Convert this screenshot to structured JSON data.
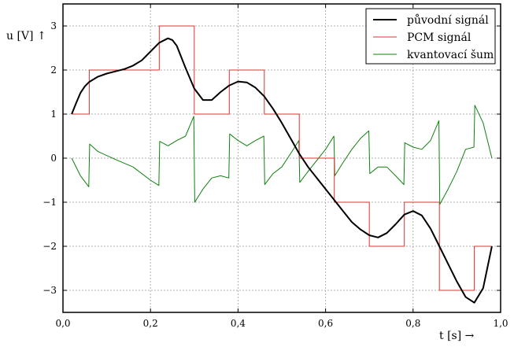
{
  "chart_data": {
    "type": "line",
    "xlabel": "t [s] →",
    "ylabel": "u [V] ↑",
    "xlim": [
      0.0,
      1.0
    ],
    "ylim": [
      -3.5,
      3.5
    ],
    "xticks": [
      {
        "value": 0.0,
        "label": "0,0"
      },
      {
        "value": 0.2,
        "label": "0,2"
      },
      {
        "value": 0.4,
        "label": "0,4"
      },
      {
        "value": 0.6,
        "label": "0,6"
      },
      {
        "value": 0.8,
        "label": "0,8"
      },
      {
        "value": 1.0,
        "label": "1,0"
      }
    ],
    "yticks": [
      {
        "value": 3,
        "label": "3"
      },
      {
        "value": 2,
        "label": "2"
      },
      {
        "value": 1,
        "label": "1"
      },
      {
        "value": 0,
        "label": "0"
      },
      {
        "value": -1,
        "label": "−1"
      },
      {
        "value": -2,
        "label": "−2"
      },
      {
        "value": -3,
        "label": "−3"
      }
    ],
    "grid": true,
    "legend_position": "top-right",
    "series": [
      {
        "name": "původní signál",
        "color": "#000000",
        "x": [
          0.02,
          0.03,
          0.04,
          0.05,
          0.06,
          0.08,
          0.1,
          0.12,
          0.14,
          0.16,
          0.18,
          0.2,
          0.22,
          0.24,
          0.25,
          0.26,
          0.28,
          0.3,
          0.32,
          0.34,
          0.36,
          0.38,
          0.4,
          0.42,
          0.44,
          0.46,
          0.48,
          0.5,
          0.52,
          0.54,
          0.56,
          0.58,
          0.6,
          0.62,
          0.64,
          0.66,
          0.68,
          0.7,
          0.72,
          0.74,
          0.76,
          0.78,
          0.8,
          0.82,
          0.84,
          0.86,
          0.88,
          0.9,
          0.92,
          0.94,
          0.96,
          0.98
        ],
        "y": [
          1.0,
          1.25,
          1.48,
          1.63,
          1.73,
          1.85,
          1.92,
          1.97,
          2.02,
          2.1,
          2.22,
          2.42,
          2.62,
          2.72,
          2.68,
          2.55,
          2.05,
          1.58,
          1.32,
          1.32,
          1.5,
          1.65,
          1.74,
          1.72,
          1.6,
          1.4,
          1.12,
          0.8,
          0.45,
          0.1,
          -0.2,
          -0.45,
          -0.7,
          -0.95,
          -1.2,
          -1.45,
          -1.62,
          -1.75,
          -1.8,
          -1.7,
          -1.5,
          -1.28,
          -1.2,
          -1.3,
          -1.6,
          -2.0,
          -2.4,
          -2.8,
          -3.15,
          -3.28,
          -2.95,
          -2.0
        ]
      },
      {
        "name": "PCM signál",
        "color": "#e03030",
        "steps": [
          {
            "x0": 0.02,
            "x1": 0.06,
            "y": 1
          },
          {
            "x0": 0.06,
            "x1": 0.22,
            "y": 2
          },
          {
            "x0": 0.22,
            "x1": 0.3,
            "y": 3
          },
          {
            "x0": 0.3,
            "x1": 0.38,
            "y": 1
          },
          {
            "x0": 0.38,
            "x1": 0.46,
            "y": 2
          },
          {
            "x0": 0.46,
            "x1": 0.54,
            "y": 1
          },
          {
            "x0": 0.54,
            "x1": 0.62,
            "y": 0
          },
          {
            "x0": 0.62,
            "x1": 0.7,
            "y": -1
          },
          {
            "x0": 0.7,
            "x1": 0.78,
            "y": -2
          },
          {
            "x0": 0.78,
            "x1": 0.86,
            "y": -1
          },
          {
            "x0": 0.86,
            "x1": 0.94,
            "y": -3
          },
          {
            "x0": 0.94,
            "x1": 0.98,
            "y": -2
          }
        ]
      },
      {
        "name": "kvantovací šum",
        "color": "#108010",
        "x": [
          0.02,
          0.04,
          0.059,
          0.061,
          0.08,
          0.12,
          0.16,
          0.2,
          0.219,
          0.221,
          0.24,
          0.26,
          0.28,
          0.299,
          0.301,
          0.32,
          0.34,
          0.36,
          0.379,
          0.381,
          0.4,
          0.42,
          0.44,
          0.459,
          0.461,
          0.48,
          0.5,
          0.52,
          0.539,
          0.541,
          0.56,
          0.58,
          0.6,
          0.619,
          0.621,
          0.64,
          0.66,
          0.68,
          0.699,
          0.701,
          0.72,
          0.74,
          0.76,
          0.779,
          0.781,
          0.8,
          0.82,
          0.84,
          0.859,
          0.861,
          0.88,
          0.9,
          0.92,
          0.939,
          0.941,
          0.96,
          0.98
        ],
        "y": [
          0.0,
          -0.4,
          -0.65,
          0.32,
          0.15,
          -0.03,
          -0.2,
          -0.5,
          -0.62,
          0.38,
          0.28,
          0.4,
          0.5,
          0.95,
          -1.0,
          -0.7,
          -0.45,
          -0.4,
          -0.45,
          0.55,
          0.4,
          0.28,
          0.4,
          0.5,
          -0.6,
          -0.35,
          -0.2,
          0.1,
          0.4,
          -0.55,
          -0.3,
          -0.05,
          0.2,
          0.5,
          -0.4,
          -0.1,
          0.2,
          0.45,
          0.62,
          -0.35,
          -0.2,
          -0.2,
          -0.4,
          -0.6,
          0.35,
          0.25,
          0.2,
          0.4,
          0.85,
          -1.05,
          -0.7,
          -0.3,
          0.2,
          0.25,
          1.2,
          0.8,
          0.0
        ]
      }
    ]
  }
}
